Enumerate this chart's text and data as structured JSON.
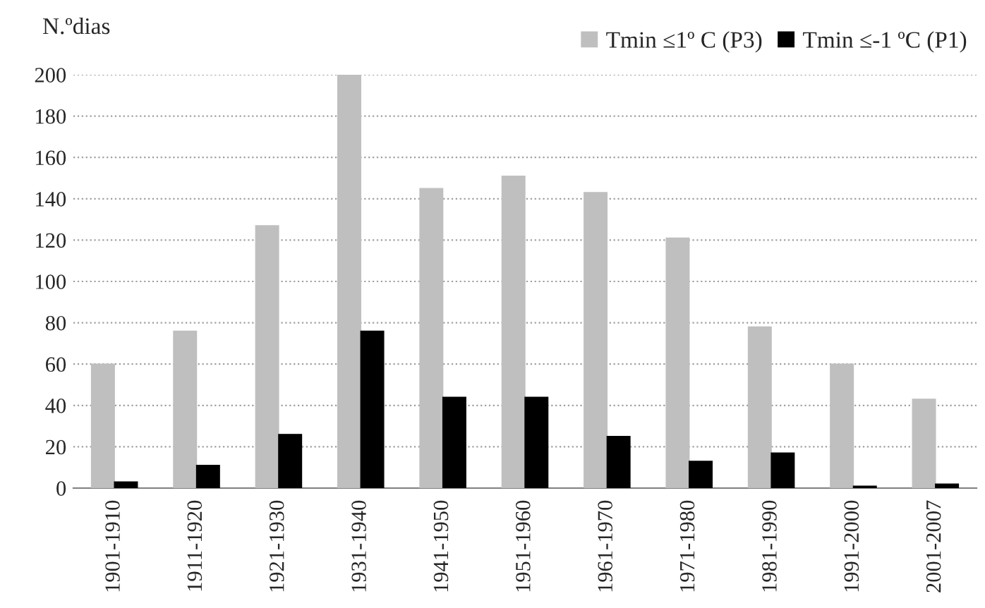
{
  "chart_data": {
    "type": "bar",
    "ylabel": "N.ºdias",
    "categories": [
      "1901-1910",
      "1911-1920",
      "1921-1930",
      "1931-1940",
      "1941-1950",
      "1951-1960",
      "1961-1970",
      "1971-1980",
      "1981-1990",
      "1991-2000",
      "2001-2007"
    ],
    "series": [
      {
        "name": "Tmin ≤1º C (P3)",
        "color": "#bfbfbf",
        "values": [
          60,
          76,
          127,
          200,
          145,
          151,
          143,
          121,
          78,
          60,
          43
        ]
      },
      {
        "name": "Tmin ≤-1 ºC (P1)",
        "color": "#000000",
        "values": [
          3,
          11,
          26,
          76,
          44,
          44,
          25,
          13,
          17,
          1,
          2
        ]
      }
    ],
    "ylim": [
      0,
      200
    ],
    "yticks": [
      0,
      20,
      40,
      60,
      80,
      100,
      120,
      140,
      160,
      180,
      200
    ],
    "grid": "y",
    "legend": "top right"
  }
}
